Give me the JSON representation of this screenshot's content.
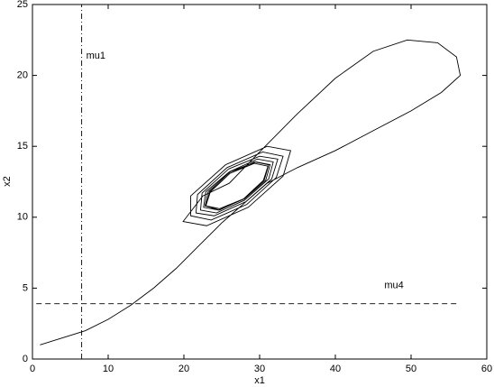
{
  "chart_data": {
    "type": "line",
    "xlabel": "x1",
    "ylabel": "x2",
    "xlim": [
      0,
      60
    ],
    "xticks": [
      0,
      10,
      20,
      30,
      40,
      50,
      60
    ],
    "ylim": [
      0,
      25
    ],
    "yticks": [
      0,
      5,
      10,
      15,
      20,
      25
    ],
    "series": [
      {
        "color": "#000000",
        "dash": "solid",
        "x": [
          1,
          4,
          7,
          10,
          13,
          16,
          19,
          22,
          25,
          28,
          31,
          35,
          40,
          45,
          50,
          54,
          56.5,
          56,
          53.5,
          49.5,
          45,
          40,
          35,
          30,
          26,
          22.5,
          19.9,
          23.0,
          28.5,
          33.1,
          34.1,
          31.0,
          25.5,
          20.9,
          20.9,
          23.6,
          28.3,
          32.2,
          33.1,
          30.4,
          25.7,
          21.8,
          21.6,
          24.0,
          28.2,
          31.6,
          32.4,
          30.0,
          25.9,
          22.4,
          22.2,
          24.3,
          28.0,
          31.2,
          31.8,
          29.7,
          26.0,
          22.9,
          22.6,
          24.6,
          28.0,
          30.8,
          31.4,
          29.5,
          26.1,
          23.2,
          22.8,
          24.7,
          27.9,
          30.6,
          31.2,
          29.3,
          26.1,
          23.4,
          22.9,
          24.7,
          27.9,
          30.5,
          31.1,
          29.3,
          26.1,
          23.5,
          22.9
        ],
        "values": [
          1,
          1.5,
          2.0,
          2.8,
          3.8,
          5.0,
          6.4,
          8.0,
          9.6,
          11.0,
          12.4,
          13.5,
          14.7,
          16.1,
          17.5,
          18.8,
          20,
          21.3,
          22.3,
          22.5,
          21.7,
          19.8,
          17.3,
          14.6,
          12.4,
          11.5,
          9.7,
          9.4,
          10.7,
          12.9,
          14.7,
          15.0,
          13.7,
          11.5,
          10.1,
          9.8,
          10.9,
          12.8,
          14.3,
          14.6,
          13.5,
          11.6,
          10.3,
          10.1,
          11.1,
          12.7,
          14.1,
          14.3,
          13.4,
          11.7,
          10.5,
          10.3,
          11.2,
          12.7,
          13.9,
          14.1,
          13.2,
          11.8,
          10.7,
          10.5,
          11.3,
          12.6,
          13.7,
          13.9,
          13.2,
          11.8,
          10.8,
          10.5,
          11.3,
          12.6,
          13.7,
          13.9,
          13.1,
          11.8,
          10.8,
          10.6,
          11.3,
          12.6,
          13.6,
          13.8,
          13.1,
          11.8,
          10.8
        ]
      },
      {
        "name": "mu1",
        "color": "#000000",
        "dash": "dashdot",
        "x": [
          6.5,
          6.5
        ],
        "values": [
          0,
          25
        ]
      },
      {
        "name": "mu4",
        "color": "#000000",
        "dash": "dashed",
        "x": [
          0.5,
          56
        ],
        "values": [
          3.9,
          3.9
        ]
      }
    ]
  }
}
